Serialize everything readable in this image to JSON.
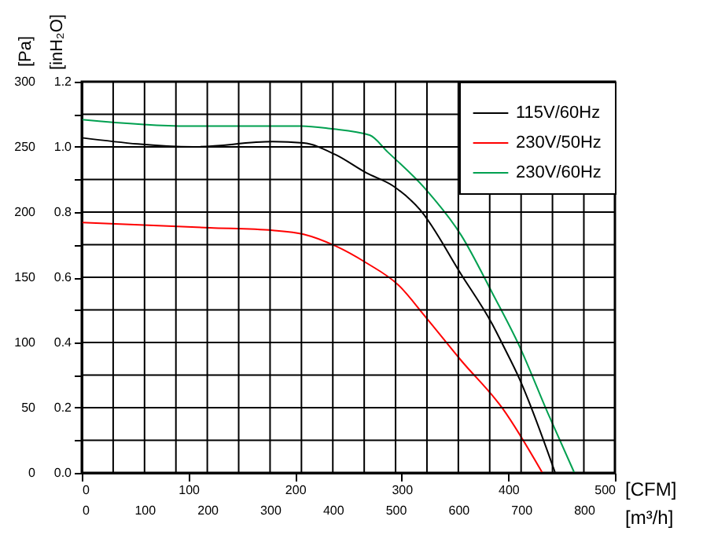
{
  "chart_data": {
    "type": "line",
    "xlabel": "[CFM]",
    "ylabel": "[Pa]",
    "x2label": "[m³/h]",
    "y2label": "[inH₂O]",
    "xlim": [
      0,
      500
    ],
    "xticks": [
      0,
      100,
      200,
      300,
      400,
      500
    ],
    "ylim": [
      0,
      300
    ],
    "yticks": [
      0,
      50,
      100,
      150,
      200,
      250,
      300
    ],
    "x2lim": [
      0,
      849.5
    ],
    "x2ticks": [
      0,
      {
        "value": 50,
        "label": null
      },
      100,
      {
        "value": 150,
        "label": null
      },
      200,
      {
        "value": 250,
        "label": null
      },
      300,
      {
        "value": 350,
        "label": null
      },
      400,
      {
        "value": 450,
        "label": null
      },
      500,
      {
        "value": 550,
        "label": null
      },
      600,
      {
        "value": 650,
        "label": null
      },
      700,
      {
        "value": 750,
        "label": null
      },
      800
    ],
    "y2lim": [
      0,
      1.2
    ],
    "y2ticks": [
      {
        "value": 0,
        "label": "0.0"
      },
      {
        "value": 0.1,
        "label": null
      },
      0.2,
      {
        "value": 0.3,
        "label": null
      },
      0.4,
      {
        "value": 0.5,
        "label": null
      },
      0.6,
      {
        "value": 0.7,
        "label": null
      },
      0.8,
      {
        "value": 0.9,
        "label": null
      },
      {
        "value": 1,
        "label": "1.0"
      },
      {
        "value": 1.1,
        "label": null
      },
      1.2
    ],
    "grid": true,
    "legend": "top right",
    "series": [
      {
        "name": "115V/60Hz",
        "color": "#000000",
        "x": [
          0,
          105,
          179,
          208,
          238,
          267,
          292,
          317,
          356,
          385,
          395,
          410,
          444
        ],
        "values": [
          257,
          250,
          254,
          253,
          244,
          230,
          220,
          202,
          152,
          114,
          98,
          73,
          0
        ]
      },
      {
        "name": "230V/50Hz",
        "color": "#ff0000",
        "x": [
          0,
          120,
          179,
          208,
          238,
          267,
          297,
          322,
          356,
          395,
          432
        ],
        "values": [
          192,
          188,
          186,
          183,
          174,
          161,
          144,
          120,
          86,
          49,
          0
        ]
      },
      {
        "name": "230V/60Hz",
        "color": "#00a050",
        "x": [
          0,
          100,
          206,
          233,
          270,
          287,
          322,
          356,
          385,
          410,
          437,
          462
        ],
        "values": [
          271,
          266,
          266,
          264,
          259,
          246,
          218,
          182,
          138,
          98,
          46,
          0
        ]
      }
    ]
  }
}
